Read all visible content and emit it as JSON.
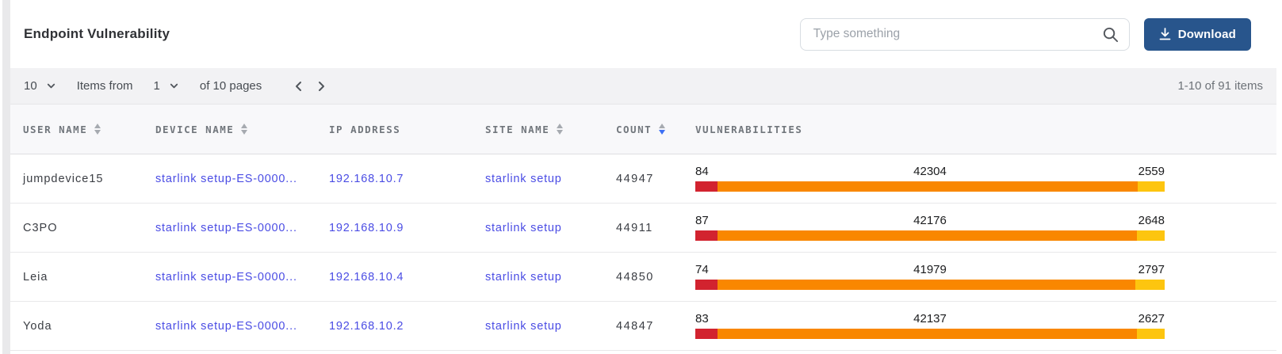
{
  "header": {
    "title": "Endpoint Vulnerability",
    "search_placeholder": "Type something",
    "download_label": "Download"
  },
  "pagination": {
    "page_size": "10",
    "items_from_label": "Items from",
    "page": "1",
    "pages_label": "of 10 pages",
    "range_label": "1-10 of 91 items"
  },
  "table": {
    "columns": [
      {
        "label": "USER NAME",
        "sortable": true,
        "sort": "none"
      },
      {
        "label": "DEVICE NAME",
        "sortable": true,
        "sort": "none"
      },
      {
        "label": "IP ADDRESS",
        "sortable": false,
        "sort": "none"
      },
      {
        "label": "SITE NAME",
        "sortable": true,
        "sort": "none"
      },
      {
        "label": "COUNT",
        "sortable": true,
        "sort": "desc"
      },
      {
        "label": "VULNERABILITIES",
        "sortable": false,
        "sort": "none"
      }
    ],
    "rows": [
      {
        "user_name": "jumpdevice15",
        "device_name": "starlink setup-ES-0000...",
        "ip_address": "192.168.10.7",
        "site_name": "starlink setup",
        "count": "44947",
        "vuln": {
          "critical": 84,
          "high": 42304,
          "medium": 2559
        }
      },
      {
        "user_name": "C3PO",
        "device_name": "starlink setup-ES-0000...",
        "ip_address": "192.168.10.9",
        "site_name": "starlink setup",
        "count": "44911",
        "vuln": {
          "critical": 87,
          "high": 42176,
          "medium": 2648
        }
      },
      {
        "user_name": "Leia",
        "device_name": "starlink setup-ES-0000...",
        "ip_address": "192.168.10.4",
        "site_name": "starlink setup",
        "count": "44850",
        "vuln": {
          "critical": 74,
          "high": 41979,
          "medium": 2797
        }
      },
      {
        "user_name": "Yoda",
        "device_name": "starlink setup-ES-0000...",
        "ip_address": "192.168.10.2",
        "site_name": "starlink setup",
        "count": "44847",
        "vuln": {
          "critical": 83,
          "high": 42137,
          "medium": 2627
        }
      }
    ]
  },
  "colors": {
    "critical": "#d2232f",
    "high": "#f98700",
    "medium": "#fdc50f",
    "link": "#4a4ce4",
    "accent_blue": "#3d70f4",
    "button_bg": "#28558c"
  }
}
